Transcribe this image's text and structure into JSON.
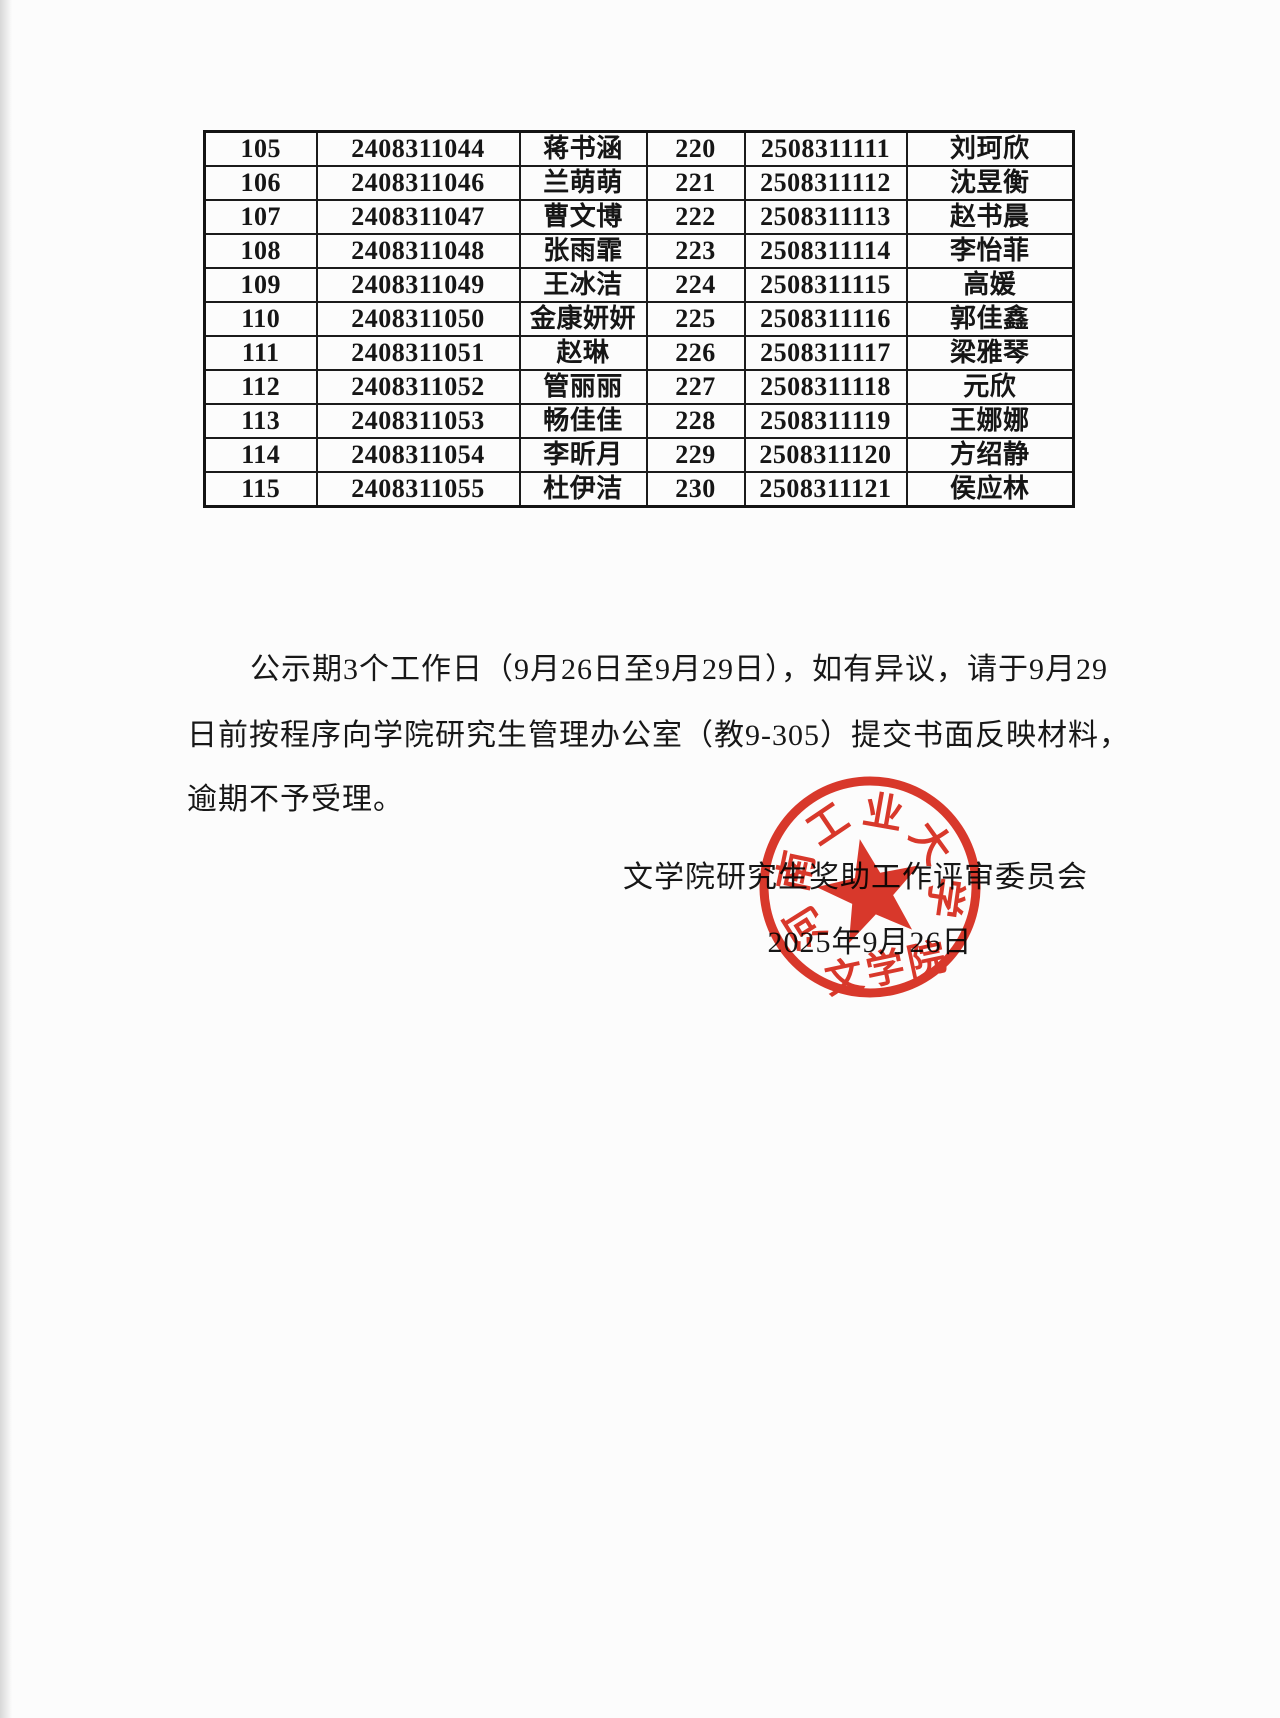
{
  "page": {
    "background": "#fcfcfc"
  },
  "table": {
    "rows": [
      {
        "no1": "105",
        "id1": "2408311044",
        "name1": "蒋书涵",
        "no2": "220",
        "id2": "2508311111",
        "name2": "刘珂欣"
      },
      {
        "no1": "106",
        "id1": "2408311046",
        "name1": "兰萌萌",
        "no2": "221",
        "id2": "2508311112",
        "name2": "沈昱衡"
      },
      {
        "no1": "107",
        "id1": "2408311047",
        "name1": "曹文博",
        "no2": "222",
        "id2": "2508311113",
        "name2": "赵书晨"
      },
      {
        "no1": "108",
        "id1": "2408311048",
        "name1": "张雨霏",
        "no2": "223",
        "id2": "2508311114",
        "name2": "李怡菲"
      },
      {
        "no1": "109",
        "id1": "2408311049",
        "name1": "王冰洁",
        "no2": "224",
        "id2": "2508311115",
        "name2": "高媛"
      },
      {
        "no1": "110",
        "id1": "2408311050",
        "name1": "金康妍妍",
        "no2": "225",
        "id2": "2508311116",
        "name2": "郭佳鑫"
      },
      {
        "no1": "111",
        "id1": "2408311051",
        "name1": "赵琳",
        "no2": "226",
        "id2": "2508311117",
        "name2": "梁雅琴"
      },
      {
        "no1": "112",
        "id1": "2408311052",
        "name1": "管丽丽",
        "no2": "227",
        "id2": "2508311118",
        "name2": "元欣"
      },
      {
        "no1": "113",
        "id1": "2408311053",
        "name1": "畅佳佳",
        "no2": "228",
        "id2": "2508311119",
        "name2": "王娜娜"
      },
      {
        "no1": "114",
        "id1": "2408311054",
        "name1": "李昕月",
        "no2": "229",
        "id2": "2508311120",
        "name2": "方绍静"
      },
      {
        "no1": "115",
        "id1": "2408311055",
        "name1": "杜伊洁",
        "no2": "230",
        "id2": "2508311121",
        "name2": "侯应林"
      }
    ]
  },
  "notice": {
    "lines": [
      "公示期3个工作日（9月26日至9月29日），如有异议，请于9月29",
      "日前按程序向学院研究生管理办公室（教9-305）提交书面反映材料，",
      "逾期不予受理。"
    ],
    "signature": "文学院研究生奖助工作评审委员会",
    "date": "2025年9月26日"
  },
  "stamp": {
    "arc_text": "河南工业大学",
    "bottom_text": "文学院",
    "color": "#d9291b"
  }
}
